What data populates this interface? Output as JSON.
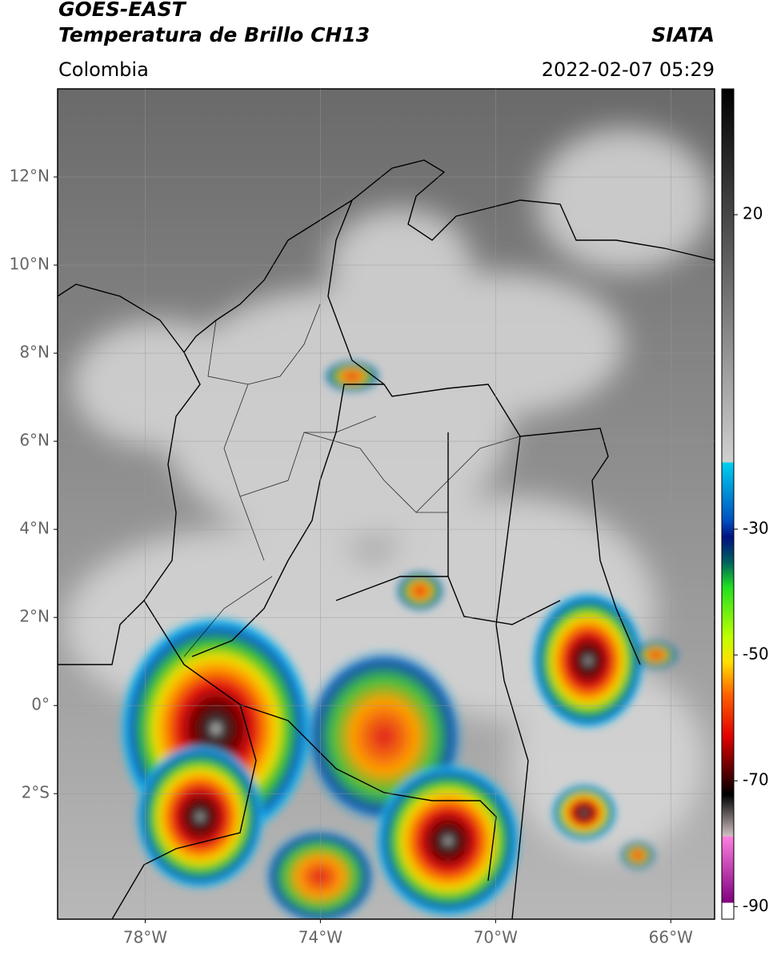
{
  "header": {
    "satellite": "GOES-EAST",
    "product": "Temperatura de Brillo CH13",
    "source": "SIATA",
    "region": "Colombia",
    "datetime": "2022-02-07 05:29"
  },
  "map": {
    "xlim": [
      -80,
      -65
    ],
    "ylim": [
      -4.85,
      14
    ],
    "xticks": [
      {
        "value": -78,
        "label": "78°W"
      },
      {
        "value": -74,
        "label": "74°W"
      },
      {
        "value": -70,
        "label": "70°W"
      },
      {
        "value": -66,
        "label": "66°W"
      }
    ],
    "yticks": [
      {
        "value": 12,
        "label": "12°N"
      },
      {
        "value": 10,
        "label": "10°N"
      },
      {
        "value": 8,
        "label": "8°N"
      },
      {
        "value": 6,
        "label": "6°N"
      },
      {
        "value": 4,
        "label": "4°N"
      },
      {
        "value": 2,
        "label": "2°N"
      },
      {
        "value": 0,
        "label": "0°"
      },
      {
        "value": -2,
        "label": "2°S"
      }
    ],
    "grid": true
  },
  "colorbar": {
    "lim": [
      -92,
      40
    ],
    "ticks": [
      20,
      -30,
      -50,
      -70,
      -90
    ]
  }
}
